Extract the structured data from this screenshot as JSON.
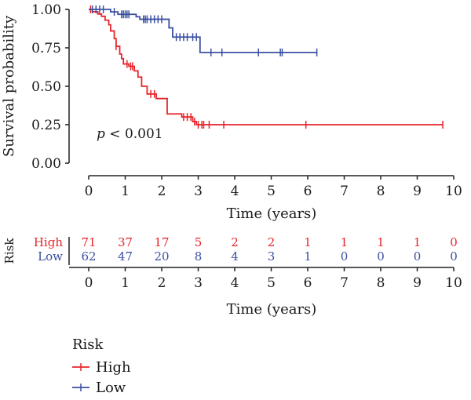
{
  "chart_data": [
    {
      "type": "line",
      "subtype": "kaplan-meier",
      "xlabel": "Time (years)",
      "ylabel": "Survival probability",
      "xlim": [
        0,
        10
      ],
      "ylim": [
        0,
        1
      ],
      "xticks": [
        "0",
        "1",
        "2",
        "3",
        "4",
        "5",
        "6",
        "7",
        "8",
        "9",
        "10"
      ],
      "yticks": [
        "0.00",
        "0.25",
        "0.50",
        "0.75",
        "1.00"
      ],
      "annotation": {
        "p_symbol": "p",
        "p_rest": " < 0.001"
      },
      "series": [
        {
          "name": "High",
          "color": "#e8242a",
          "steps": [
            [
              0,
              1.0
            ],
            [
              0.1,
              0.985
            ],
            [
              0.25,
              0.97
            ],
            [
              0.35,
              0.955
            ],
            [
              0.45,
              0.93
            ],
            [
              0.55,
              0.9
            ],
            [
              0.6,
              0.86
            ],
            [
              0.7,
              0.81
            ],
            [
              0.75,
              0.76
            ],
            [
              0.85,
              0.71
            ],
            [
              0.9,
              0.68
            ],
            [
              0.95,
              0.645
            ],
            [
              1.1,
              0.63
            ],
            [
              1.25,
              0.6
            ],
            [
              1.35,
              0.56
            ],
            [
              1.45,
              0.5
            ],
            [
              1.6,
              0.45
            ],
            [
              1.85,
              0.42
            ],
            [
              2.15,
              0.32
            ],
            [
              2.55,
              0.3
            ],
            [
              2.85,
              0.27
            ],
            [
              2.95,
              0.25
            ],
            [
              9.7,
              0.25
            ]
          ],
          "censor": [
            [
              0.05,
              1.0
            ],
            [
              0.75,
              0.76
            ],
            [
              1.05,
              0.645
            ],
            [
              1.15,
              0.63
            ],
            [
              1.2,
              0.63
            ],
            [
              1.7,
              0.45
            ],
            [
              1.8,
              0.45
            ],
            [
              2.6,
              0.3
            ],
            [
              2.7,
              0.3
            ],
            [
              2.8,
              0.3
            ],
            [
              2.9,
              0.27
            ],
            [
              3.0,
              0.25
            ],
            [
              3.1,
              0.25
            ],
            [
              3.15,
              0.25
            ],
            [
              3.3,
              0.25
            ],
            [
              3.7,
              0.25
            ],
            [
              5.95,
              0.25
            ],
            [
              9.7,
              0.25
            ]
          ]
        },
        {
          "name": "Low",
          "color": "#3a4fa0",
          "steps": [
            [
              0,
              1.0
            ],
            [
              0.6,
              0.984
            ],
            [
              0.8,
              0.968
            ],
            [
              1.3,
              0.952
            ],
            [
              1.4,
              0.936
            ],
            [
              2.2,
              0.88
            ],
            [
              2.3,
              0.82
            ],
            [
              3.05,
              0.72
            ],
            [
              6.25,
              0.72
            ]
          ],
          "censor": [
            [
              0.1,
              1.0
            ],
            [
              0.2,
              1.0
            ],
            [
              0.3,
              1.0
            ],
            [
              0.4,
              1.0
            ],
            [
              0.7,
              0.984
            ],
            [
              0.9,
              0.968
            ],
            [
              0.95,
              0.968
            ],
            [
              1.0,
              0.968
            ],
            [
              1.05,
              0.968
            ],
            [
              1.1,
              0.968
            ],
            [
              1.5,
              0.936
            ],
            [
              1.55,
              0.936
            ],
            [
              1.6,
              0.936
            ],
            [
              1.7,
              0.936
            ],
            [
              1.8,
              0.936
            ],
            [
              1.9,
              0.936
            ],
            [
              2.0,
              0.936
            ],
            [
              2.4,
              0.82
            ],
            [
              2.5,
              0.82
            ],
            [
              2.6,
              0.82
            ],
            [
              2.7,
              0.82
            ],
            [
              2.85,
              0.82
            ],
            [
              2.95,
              0.82
            ],
            [
              3.35,
              0.72
            ],
            [
              3.65,
              0.72
            ],
            [
              4.65,
              0.72
            ],
            [
              5.25,
              0.72
            ],
            [
              5.3,
              0.72
            ],
            [
              6.25,
              0.72
            ]
          ]
        }
      ]
    },
    {
      "type": "table",
      "title": "Risk",
      "xlabel": "Time (years)",
      "xticks": [
        "0",
        "1",
        "2",
        "3",
        "4",
        "5",
        "6",
        "7",
        "8",
        "9",
        "10"
      ],
      "rows": [
        {
          "name": "High",
          "color": "#e8242a",
          "values": [
            71,
            37,
            17,
            5,
            2,
            2,
            1,
            1,
            1,
            1,
            0
          ]
        },
        {
          "name": "Low",
          "color": "#3a4fa0",
          "values": [
            62,
            47,
            20,
            8,
            4,
            3,
            1,
            0,
            0,
            0,
            0
          ]
        }
      ]
    }
  ],
  "legend": {
    "title": "Risk",
    "items": [
      {
        "label": "High",
        "color": "#e8242a"
      },
      {
        "label": "Low",
        "color": "#3a4fa0"
      }
    ]
  }
}
